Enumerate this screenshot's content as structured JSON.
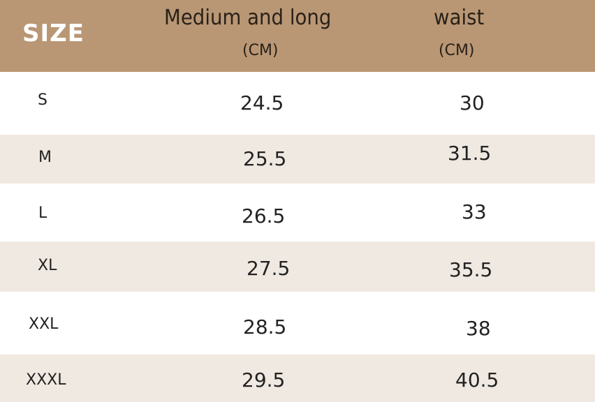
{
  "header": {
    "size": "SIZE",
    "col1": "Medium and long",
    "col1_unit": "(CM)",
    "col2": "waist",
    "col2_unit": "(CM)"
  },
  "colors": {
    "header_bg": "#b99775",
    "alt_row_bg": "#f0e9e1"
  },
  "rows": [
    {
      "size": "S",
      "length": "24.5",
      "waist": "30"
    },
    {
      "size": "M",
      "length": "25.5",
      "waist": "31.5"
    },
    {
      "size": "L",
      "length": "26.5",
      "waist": "33"
    },
    {
      "size": "XL",
      "length": "27.5",
      "waist": "35.5"
    },
    {
      "size": "XXL",
      "length": "28.5",
      "waist": "38"
    },
    {
      "size": "XXXL",
      "length": "29.5",
      "waist": "40.5"
    }
  ]
}
